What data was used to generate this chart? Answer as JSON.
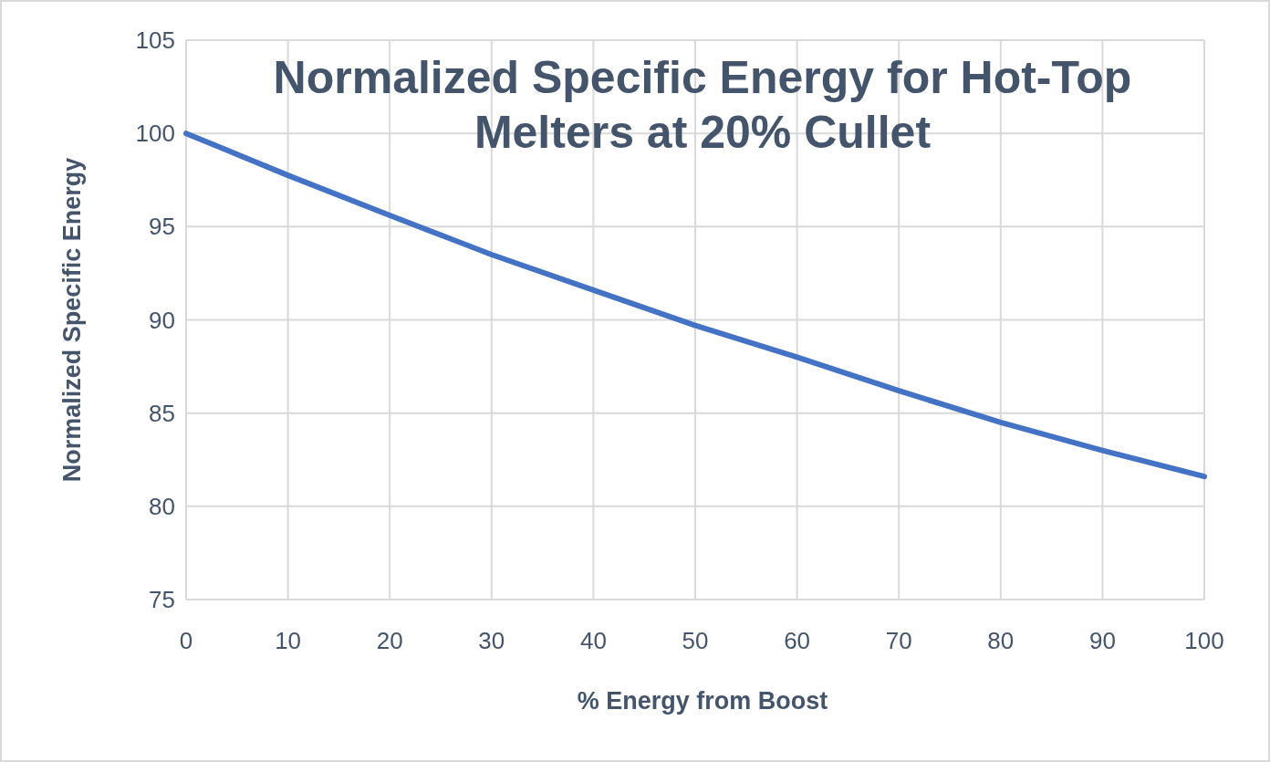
{
  "chart_data": {
    "type": "line",
    "title": "Normalized Specific Energy for Hot-Top Melters at 20% Cullet",
    "xlabel": "% Energy from Boost",
    "ylabel": "Normalized Specific Energy",
    "x": [
      0,
      10,
      20,
      30,
      40,
      50,
      60,
      70,
      80,
      90,
      100
    ],
    "series": [
      {
        "color": "#4472c4",
        "values": [
          100,
          97.75,
          95.6,
          93.5,
          91.6,
          89.7,
          88.0,
          86.2,
          84.5,
          83.0,
          81.6
        ]
      }
    ],
    "xlim": [
      0,
      100
    ],
    "xticks": [
      0,
      10,
      20,
      30,
      40,
      50,
      60,
      70,
      80,
      90,
      100
    ],
    "ylim": [
      75,
      105
    ],
    "yticks": [
      75,
      80,
      85,
      90,
      95,
      100,
      105
    ],
    "grid": true,
    "marker": "none",
    "line_style": "solid"
  }
}
